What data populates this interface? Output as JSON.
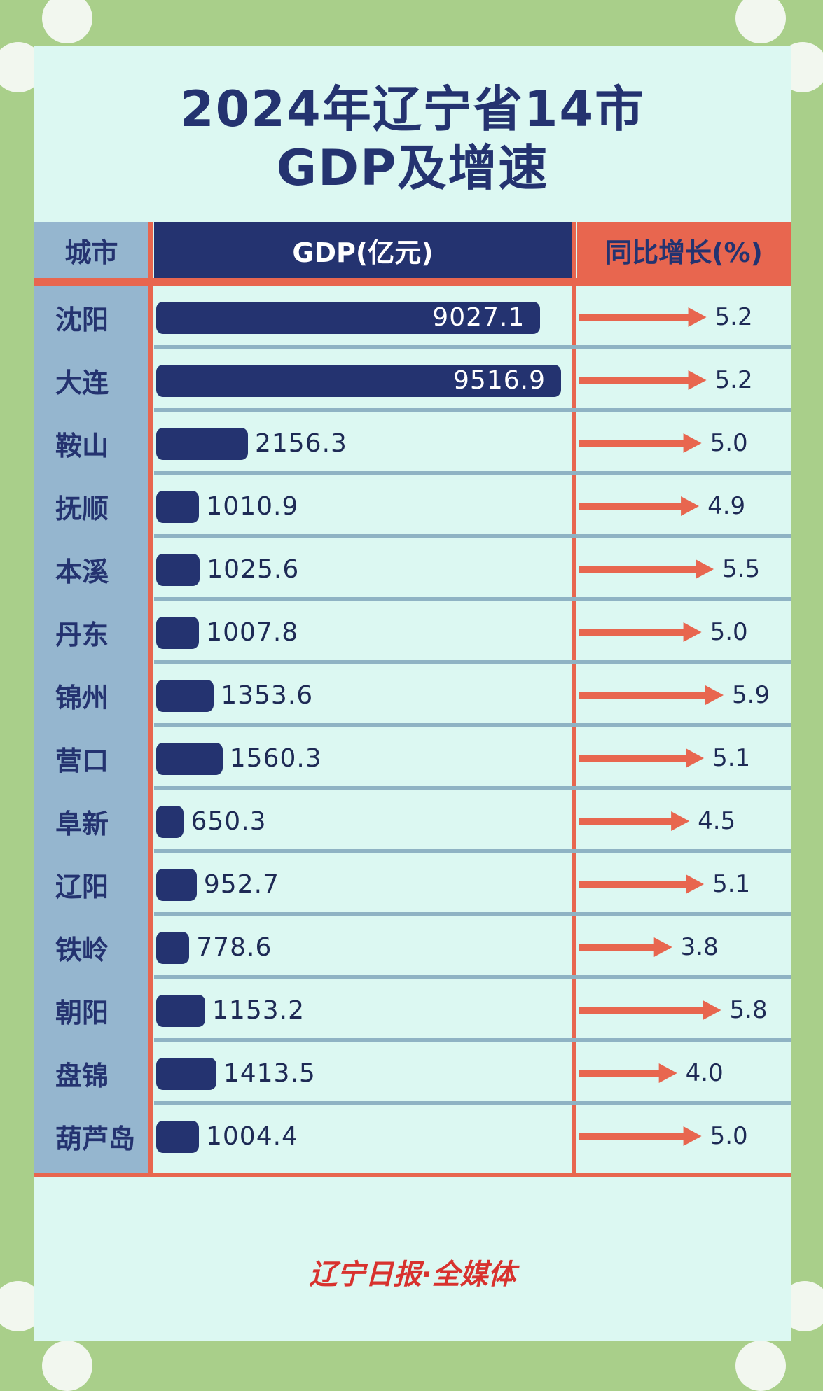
{
  "title_line1": "2024年辽宁省14市",
  "title_line2": "GDP及增速",
  "headers": {
    "city": "城市",
    "gdp": "GDP(亿元)",
    "growth": "同比增长(%)"
  },
  "logo_text": "辽宁日报·全媒体",
  "colors": {
    "navy": "#243370",
    "red": "#e8664f",
    "steel": "#95b6cf",
    "bg": "#dcf8f2",
    "frame": "#a9cf8a"
  },
  "chart_data": {
    "type": "bar",
    "orientation": "horizontal",
    "title": "2024年辽宁省14市 GDP及增速",
    "categories": [
      "沈阳",
      "大连",
      "鞍山",
      "抚顺",
      "本溪",
      "丹东",
      "锦州",
      "营口",
      "阜新",
      "辽阳",
      "铁岭",
      "朝阳",
      "盘锦",
      "葫芦岛"
    ],
    "series": [
      {
        "name": "GDP(亿元)",
        "values": [
          9027.1,
          9516.9,
          2156.3,
          1010.9,
          1025.6,
          1007.8,
          1353.6,
          1560.3,
          650.3,
          952.7,
          778.6,
          1153.2,
          1413.5,
          1004.4
        ]
      },
      {
        "name": "同比增长(%)",
        "values": [
          5.2,
          5.2,
          5.0,
          4.9,
          5.5,
          5.0,
          5.9,
          5.1,
          4.5,
          5.1,
          3.8,
          5.8,
          4.0,
          5.0
        ]
      }
    ],
    "labels": {
      "gdp": [
        "9027.1",
        "9516.9",
        "2156.3",
        "1010.9",
        "1025.6",
        "1007.8",
        "1353.6",
        "1560.3",
        "650.3",
        "952.7",
        "778.6",
        "1153.2",
        "1413.5",
        "1004.4"
      ],
      "growth": [
        "5.2",
        "5.2",
        "5.0",
        "4.9",
        "5.5",
        "5.0",
        "5.9",
        "5.1",
        "4.5",
        "5.1",
        "3.8",
        "5.8",
        "4.0",
        "5.0"
      ]
    }
  }
}
